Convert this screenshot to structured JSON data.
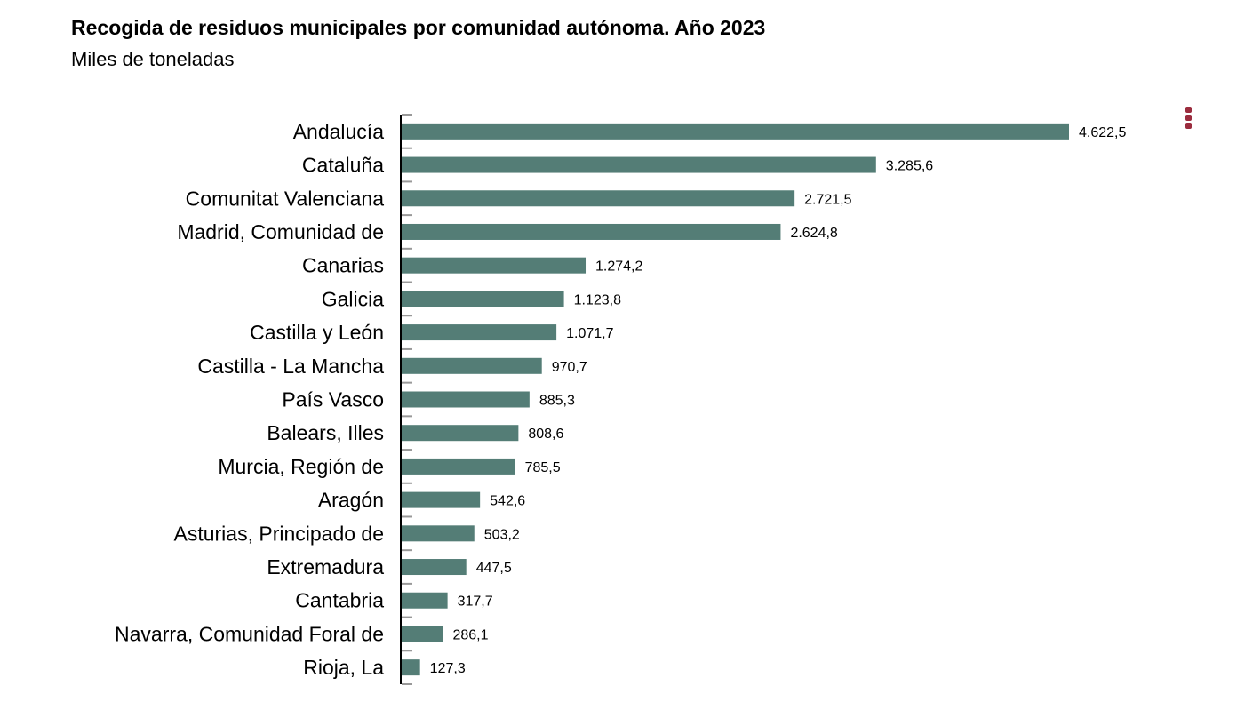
{
  "chart_data": {
    "type": "bar",
    "orientation": "horizontal",
    "title": "Recogida de residuos municipales por comunidad autónoma. Año 2023",
    "subtitle": "Miles de toneladas",
    "xlabel": "",
    "ylabel": "",
    "categories": [
      "Andalucía",
      "Cataluña",
      "Comunitat Valenciana",
      "Madrid, Comunidad de",
      "Canarias",
      "Galicia",
      "Castilla y León",
      "Castilla - La Mancha",
      "País Vasco",
      "Balears, Illes",
      "Murcia, Región de",
      "Aragón",
      "Asturias, Principado de",
      "Extremadura",
      "Cantabria",
      "Navarra, Comunidad Foral de",
      "Rioja, La"
    ],
    "values": [
      4622.5,
      3285.6,
      2721.5,
      2624.8,
      1274.2,
      1123.8,
      1071.7,
      970.7,
      885.3,
      808.6,
      785.5,
      542.6,
      503.2,
      447.5,
      317.7,
      286.1,
      127.3
    ],
    "labels": [
      "4.622,5",
      "3.285,6",
      "2.721,5",
      "2.624,8",
      "1.274,2",
      "1.123,8",
      "1.071,7",
      "970,7",
      "885,3",
      "808,6",
      "785,5",
      "542,6",
      "503,2",
      "447,5",
      "317,7",
      "286,1",
      "127,3"
    ],
    "xlim": [
      0,
      4622.5
    ],
    "grid": false,
    "legend": "none",
    "bar_color": "#547d76",
    "menu_color": "#9b2c3e"
  },
  "menu_icon": "kebab-menu-icon"
}
